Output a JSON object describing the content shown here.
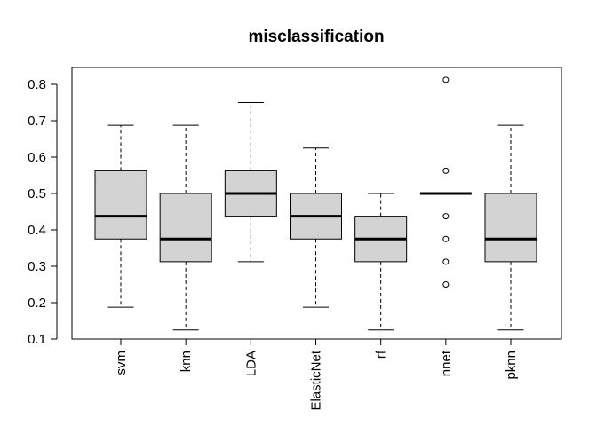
{
  "chart_data": {
    "type": "boxplot",
    "title": "misclassification",
    "xlabel": "",
    "ylabel": "",
    "ylim": [
      0.1,
      0.85
    ],
    "yticks": [
      0.1,
      0.2,
      0.3,
      0.4,
      0.5,
      0.6,
      0.7,
      0.8
    ],
    "ytick_labels": [
      "0.1",
      "0.2",
      "0.3",
      "0.4",
      "0.5",
      "0.6",
      "0.7",
      "0.8"
    ],
    "categories": [
      "svm",
      "knn",
      "LDA",
      "ElasticNet",
      "rf",
      "nnet",
      "pknn"
    ],
    "box_color": "#d3d3d3",
    "grid": false,
    "boxes": [
      {
        "name": "svm",
        "min": 0.1875,
        "q1": 0.375,
        "median": 0.4375,
        "q3": 0.5625,
        "max": 0.6875,
        "outliers": []
      },
      {
        "name": "knn",
        "min": 0.125,
        "q1": 0.3125,
        "median": 0.375,
        "q3": 0.5,
        "max": 0.6875,
        "outliers": []
      },
      {
        "name": "LDA",
        "min": 0.3125,
        "q1": 0.4375,
        "median": 0.5,
        "q3": 0.5625,
        "max": 0.75,
        "outliers": []
      },
      {
        "name": "ElasticNet",
        "min": 0.1875,
        "q1": 0.375,
        "median": 0.4375,
        "q3": 0.5,
        "max": 0.625,
        "outliers": []
      },
      {
        "name": "rf",
        "min": 0.125,
        "q1": 0.3125,
        "median": 0.375,
        "q3": 0.4375,
        "max": 0.5,
        "outliers": []
      },
      {
        "name": "nnet",
        "min": 0.5,
        "q1": 0.5,
        "median": 0.5,
        "q3": 0.5,
        "max": 0.5,
        "outliers": [
          0.8125,
          0.5625,
          0.4375,
          0.375,
          0.3125,
          0.25
        ]
      },
      {
        "name": "pknn",
        "min": 0.125,
        "q1": 0.3125,
        "median": 0.375,
        "q3": 0.5,
        "max": 0.6875,
        "outliers": []
      }
    ]
  }
}
